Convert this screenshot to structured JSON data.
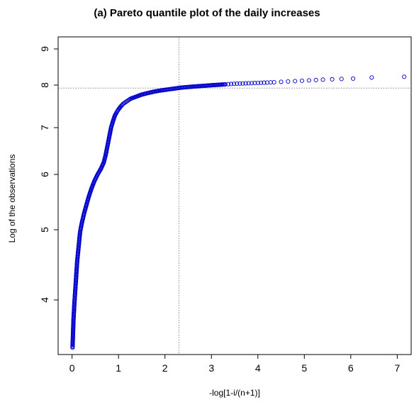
{
  "chart_data": {
    "type": "scatter",
    "title": "(a) Pareto quantile plot of the daily increases",
    "xlabel": "-log[1-i/(n+1)]",
    "ylabel": "Log of the observations",
    "xlim": [
      -0.3,
      7.3
    ],
    "ylim": [
      3.2,
      9.3
    ],
    "y_scale": "nonlinear (tick spacing wider at low values)",
    "x_ticks": [
      "0",
      "1",
      "2",
      "3",
      "4",
      "5",
      "6",
      "7"
    ],
    "y_ticks": [
      "4",
      "5",
      "6",
      "7",
      "8",
      "9"
    ],
    "reference_lines": {
      "vertical_x": 2.3,
      "horizontal_y": 7.93
    },
    "marker": {
      "shape": "open circle",
      "color": "#0000cc"
    },
    "series": [
      {
        "x": [
          0.01,
          0.02,
          0.03,
          0.05,
          0.07,
          0.09,
          0.11,
          0.14,
          0.17,
          0.21,
          0.26,
          0.31,
          0.36,
          0.42,
          0.48,
          0.55,
          0.62,
          0.68,
          0.72,
          0.76,
          0.8,
          0.84,
          0.88,
          0.92,
          0.96,
          1.0,
          1.05,
          1.1,
          1.18,
          1.26,
          1.36,
          1.48,
          1.62,
          1.78,
          1.95,
          2.15,
          2.35,
          2.55,
          2.8,
          3.05,
          3.3,
          3.55,
          3.8,
          4.0,
          4.2,
          4.35,
          4.5,
          4.65,
          4.8,
          4.95,
          5.1,
          5.25,
          5.4,
          5.6,
          5.8,
          6.05,
          6.45,
          7.15
        ],
        "y": [
          3.3,
          3.5,
          3.7,
          3.95,
          4.15,
          4.35,
          4.55,
          4.75,
          4.95,
          5.12,
          5.3,
          5.45,
          5.6,
          5.75,
          5.88,
          6.0,
          6.12,
          6.25,
          6.4,
          6.6,
          6.8,
          7.0,
          7.15,
          7.28,
          7.36,
          7.43,
          7.5,
          7.56,
          7.62,
          7.68,
          7.72,
          7.77,
          7.81,
          7.85,
          7.88,
          7.91,
          7.94,
          7.96,
          7.98,
          8.0,
          8.02,
          8.04,
          8.05,
          8.06,
          8.07,
          8.08,
          8.09,
          8.1,
          8.11,
          8.12,
          8.13,
          8.14,
          8.15,
          8.16,
          8.17,
          8.18,
          8.21,
          8.23
        ]
      }
    ]
  }
}
